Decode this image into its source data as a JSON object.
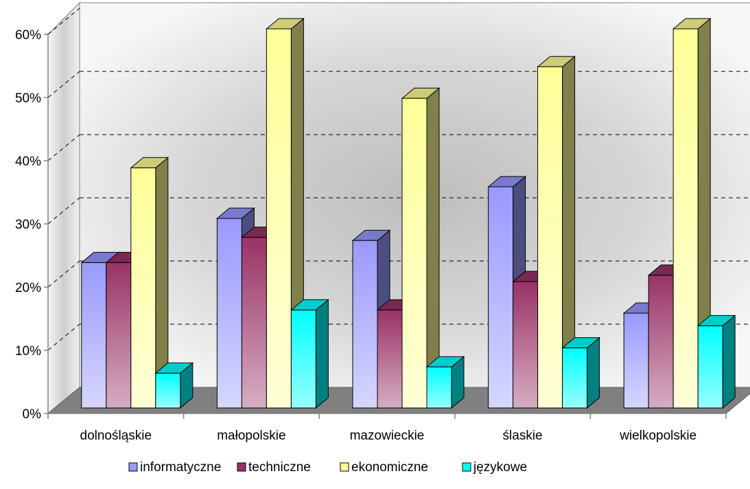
{
  "chart_data": {
    "type": "bar",
    "style": "3d-clustered-column",
    "categories": [
      "dolnośląskie",
      "małopolskie",
      "mazowieckie",
      "ślaskie",
      "wielkopolskie"
    ],
    "series": [
      {
        "name": "informatyczne",
        "values": [
          23,
          30,
          26.5,
          35,
          15
        ],
        "color": "#9999ff"
      },
      {
        "name": "techniczne",
        "values": [
          23,
          27,
          15.5,
          20,
          21
        ],
        "color": "#993366"
      },
      {
        "name": "ekonomiczne",
        "values": [
          38,
          60,
          49,
          54,
          60
        ],
        "color": "#ffff99"
      },
      {
        "name": "językowe",
        "values": [
          5.5,
          15.5,
          6.5,
          9.5,
          13
        ],
        "color": "#00ffff"
      }
    ],
    "ylim": [
      0,
      60
    ],
    "yticks": [
      "0%",
      "10%",
      "20%",
      "30%",
      "40%",
      "50%",
      "60%"
    ],
    "grid": true,
    "legend_position": "bottom"
  }
}
